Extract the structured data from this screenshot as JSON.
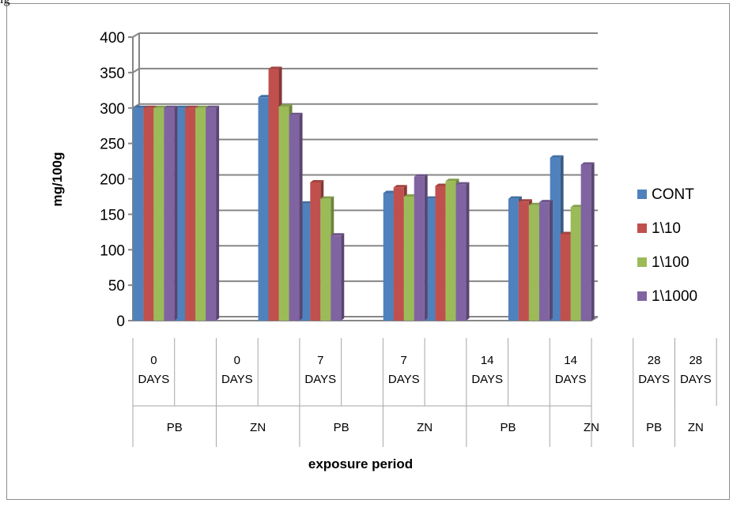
{
  "top_note": "ig",
  "chart_data": {
    "type": "bar",
    "title": "",
    "xlabel": "exposure period",
    "ylabel": "mg/100g",
    "ylim": [
      0,
      400
    ],
    "yticks": [
      0,
      50,
      100,
      150,
      200,
      250,
      300,
      350,
      400
    ],
    "grid": true,
    "legend_position": "right",
    "groups": [
      {
        "label": "PB",
        "slots": [
          {
            "day": "0",
            "unit": "DAYS"
          },
          null
        ]
      },
      {
        "label": "ZN",
        "slots": [
          {
            "day": "0",
            "unit": "DAYS"
          },
          null
        ]
      },
      {
        "label": "PB",
        "slots": [
          {
            "day": "7",
            "unit": "DAYS"
          },
          null
        ]
      },
      {
        "label": "ZN",
        "slots": [
          {
            "day": "7",
            "unit": "DAYS"
          },
          null
        ]
      },
      {
        "label": "PB",
        "slots": [
          {
            "day": "14",
            "unit": "DAYS"
          },
          null
        ]
      },
      {
        "label": "ZN",
        "slots": [
          {
            "day": "14",
            "unit": "DAYS"
          },
          null
        ]
      },
      {
        "label": "PB",
        "slots": [
          {
            "day": "28",
            "unit": "DAYS"
          }
        ]
      },
      {
        "label": "ZN",
        "slots": [
          {
            "day": "28",
            "unit": "DAYS"
          }
        ]
      }
    ],
    "categories": [
      "0 DAYS PB",
      "0 DAYS ZN",
      "",
      "7 DAYS PB",
      "7 DAYS ZN",
      "",
      "14 DAYS PB",
      "14 DAYS ZN",
      "",
      "28 DAYS PB",
      "28 DAYS ZN"
    ],
    "series": [
      {
        "name": "CONT",
        "color": "#4F81BD",
        "values": [
          300,
          300,
          null,
          315,
          165,
          null,
          180,
          172,
          null,
          172,
          230
        ]
      },
      {
        "name": "1\\10",
        "color": "#C0504D",
        "values": [
          300,
          300,
          null,
          355,
          195,
          null,
          188,
          190,
          null,
          168,
          122
        ]
      },
      {
        "name": "1\\100",
        "color": "#9BBB59",
        "values": [
          300,
          300,
          null,
          302,
          172,
          null,
          175,
          197,
          null,
          163,
          160
        ]
      },
      {
        "name": "1\\1000",
        "color": "#8064A2",
        "values": [
          300,
          300,
          null,
          290,
          120,
          null,
          203,
          192,
          null,
          167,
          220
        ]
      }
    ]
  }
}
